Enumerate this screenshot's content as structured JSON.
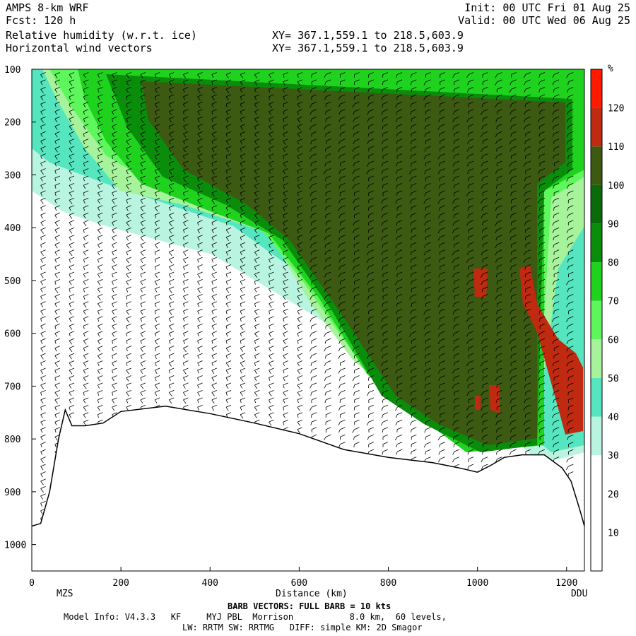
{
  "header": {
    "model": "AMPS 8-km WRF",
    "forecast": "Fcst: 120 h",
    "init": "Init: 00 UTC Fri 01 Aug 25",
    "valid": "Valid: 00 UTC Wed 06 Aug 25",
    "field1": "Relative humidity (w.r.t. ice)",
    "field2": "Horizontal wind vectors",
    "xy1": "XY= 367.1,559.1 to 218.5,603.9",
    "xy2": "XY= 367.1,559.1 to 218.5,603.9"
  },
  "chart_data": {
    "type": "heatmap",
    "title": "Relative humidity (w.r.t. ice)",
    "xlabel": "Distance (km)",
    "xlim": [
      0,
      1240
    ],
    "ylim": [
      100,
      1050
    ],
    "x_ticks": [
      0,
      200,
      400,
      600,
      800,
      1000,
      1200
    ],
    "y_ticks": [
      100,
      200,
      300,
      400,
      500,
      600,
      700,
      800,
      900,
      1000
    ],
    "endpoints": {
      "left": "MZS",
      "right": "DDU"
    },
    "colorbar": {
      "unit": "%",
      "levels": [
        10,
        20,
        30,
        40,
        50,
        60,
        70,
        80,
        90,
        100,
        110,
        120
      ],
      "colors": [
        "#ffffff",
        "#ffffff",
        "#ffffff",
        "#b8f4e0",
        "#55e6c0",
        "#a6f39b",
        "#5ef75b",
        "#1ed21e",
        "#0a8d0a",
        "#0b6b0b",
        "#3c5a12",
        "#c02a10",
        "#ff1a00"
      ]
    },
    "terrain": [
      [
        0,
        965
      ],
      [
        20,
        960
      ],
      [
        40,
        900
      ],
      [
        60,
        800
      ],
      [
        75,
        745
      ],
      [
        90,
        775
      ],
      [
        120,
        775
      ],
      [
        160,
        770
      ],
      [
        200,
        748
      ],
      [
        300,
        738
      ],
      [
        400,
        752
      ],
      [
        500,
        770
      ],
      [
        600,
        790
      ],
      [
        700,
        820
      ],
      [
        800,
        835
      ],
      [
        900,
        845
      ],
      [
        960,
        855
      ],
      [
        1000,
        863
      ],
      [
        1030,
        850
      ],
      [
        1060,
        835
      ],
      [
        1100,
        830
      ],
      [
        1150,
        830
      ],
      [
        1190,
        855
      ],
      [
        1210,
        880
      ],
      [
        1230,
        935
      ],
      [
        1240,
        965
      ]
    ],
    "wind_barbs": "FULL BARB = 10 kts"
  },
  "footer": {
    "barb": "BARB VECTORS: FULL BARB = 10 kts",
    "info1": "Model Info: V4.3.3   KF     MYJ PBL  Morrison           8.0 km,  60 levels,",
    "info2": "LW: RRTM SW: RRTMG   DIFF: simple KM: 2D Smagor"
  }
}
